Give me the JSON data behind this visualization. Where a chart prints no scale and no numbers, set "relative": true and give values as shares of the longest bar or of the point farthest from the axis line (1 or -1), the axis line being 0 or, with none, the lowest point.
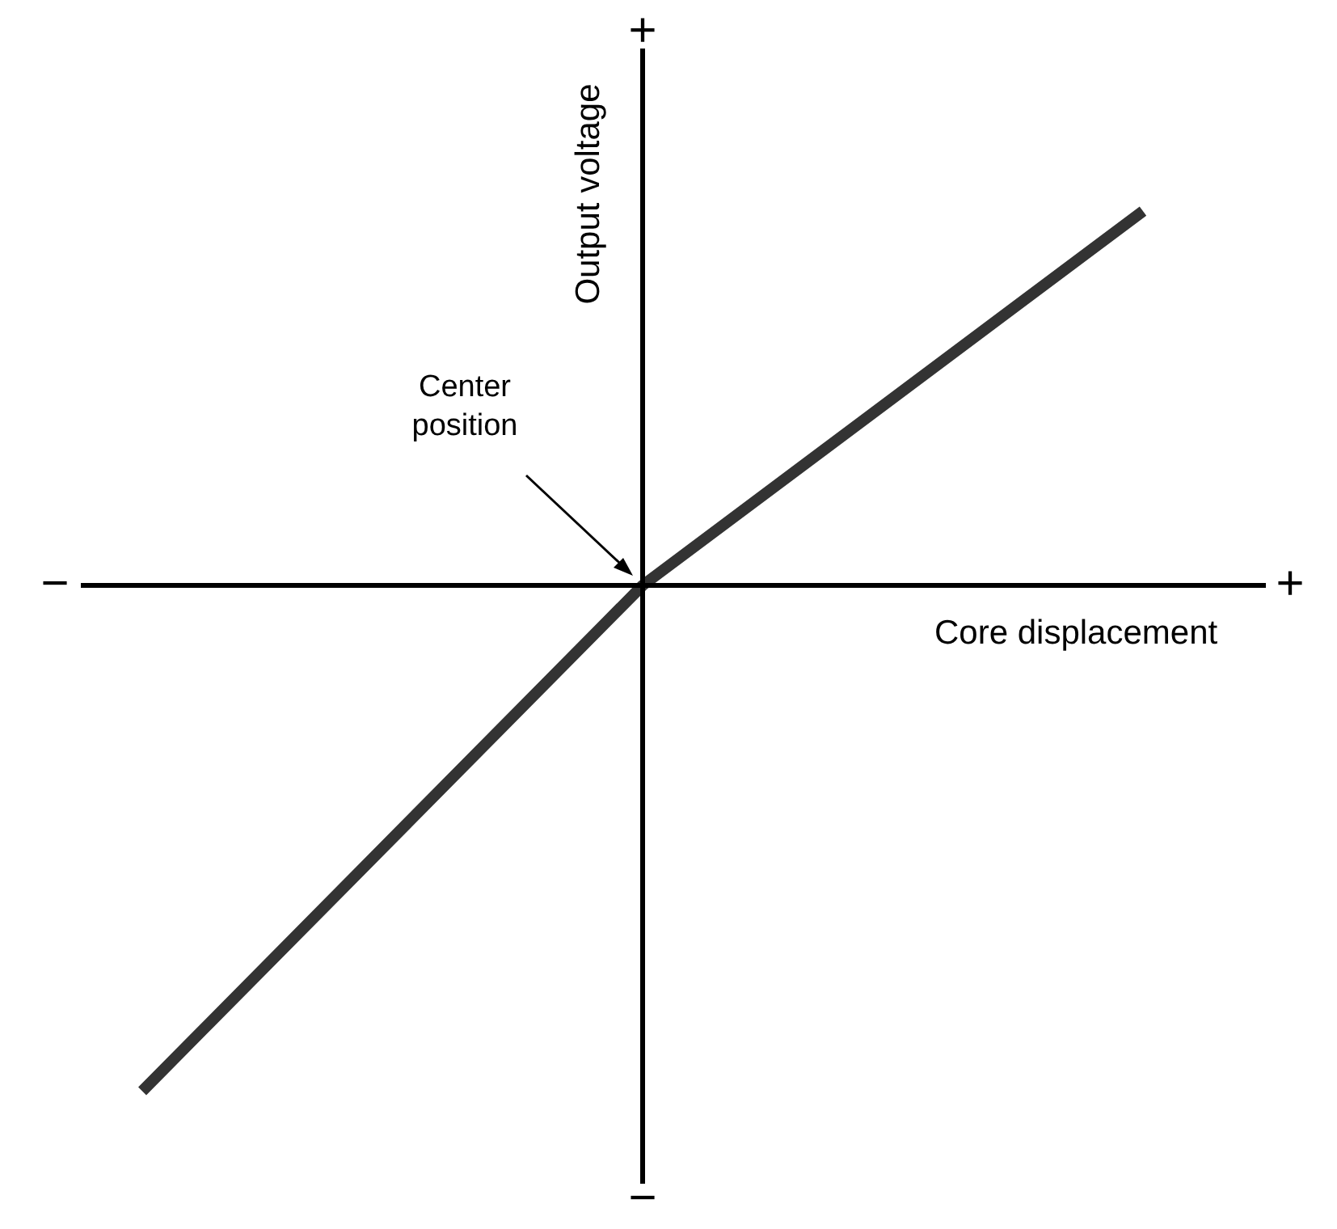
{
  "chart_data": {
    "type": "line",
    "relative": true,
    "categories": [
      null,
      null,
      null
    ],
    "values": [
      -1,
      0,
      0.74
    ],
    "color": "#333333",
    "marker": "none",
    "xlabel": "Core displacement",
    "ylabel": "Output voltage",
    "annotations": [
      "Center position",
      "+",
      "−",
      "+",
      "−"
    ]
  }
}
